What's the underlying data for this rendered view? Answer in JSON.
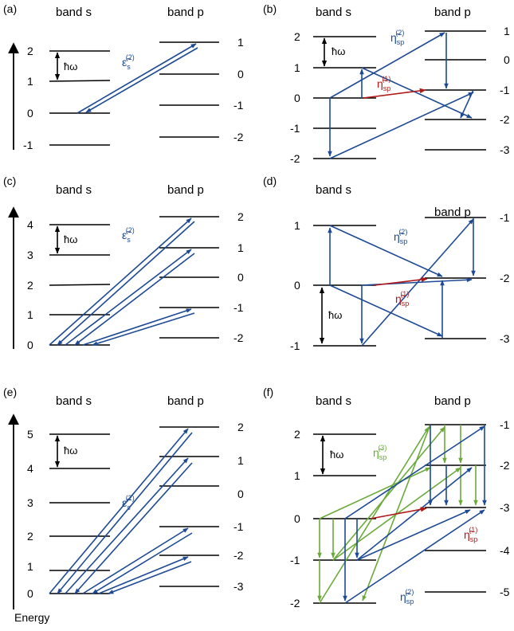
{
  "colors": {
    "blue": "#1c4a94",
    "red": "#b01818",
    "green": "#6aaa3a",
    "black": "#000000"
  },
  "axis_label": "Energy",
  "hbar_omega": "ħω",
  "panels": [
    {
      "id": "a",
      "label": "(a)",
      "band_s": "band s",
      "band_p": "band p",
      "s_levels": [
        "2",
        "1",
        "0",
        "-1"
      ],
      "p_levels": [
        "1",
        "0",
        "-1",
        "-2"
      ],
      "symbol": "ε̃",
      "sub": "s",
      "sup": "(2)"
    },
    {
      "id": "b",
      "label": "(b)",
      "band_s": "band s",
      "band_p": "band p",
      "s_levels": [
        "2",
        "1",
        "0",
        "-1",
        "-2"
      ],
      "p_levels": [
        "1",
        "0",
        "-1",
        "-2",
        "-3"
      ],
      "symbols": [
        {
          "sym": "η̃",
          "sub": "sp",
          "sup": "(2)",
          "color": "blue"
        },
        {
          "sym": "η̃",
          "sub": "sp",
          "sup": "(1)",
          "color": "red"
        }
      ]
    },
    {
      "id": "c",
      "label": "(c)",
      "band_s": "band s",
      "band_p": "band p",
      "s_levels": [
        "4",
        "3",
        "2",
        "1",
        "0"
      ],
      "p_levels": [
        "2",
        "1",
        "0",
        "-1",
        "-2"
      ],
      "symbol": "ε̃",
      "sub": "s",
      "sup": "(2)"
    },
    {
      "id": "d",
      "label": "(d)",
      "band_s": "band s",
      "band_p": "band p",
      "s_levels": [
        "1",
        "0",
        "-1"
      ],
      "p_levels": [
        "-1",
        "-2",
        "-3"
      ],
      "symbols": [
        {
          "sym": "η̃",
          "sub": "sp",
          "sup": "(2)",
          "color": "blue"
        },
        {
          "sym": "η̃",
          "sub": "sp",
          "sup": "(1)",
          "color": "red"
        }
      ]
    },
    {
      "id": "e",
      "label": "(e)",
      "band_s": "band s",
      "band_p": "band p",
      "s_levels": [
        "5",
        "4",
        "3",
        "2",
        "1",
        "0"
      ],
      "p_levels": [
        "2",
        "1",
        "0",
        "-1",
        "-2",
        "-3"
      ],
      "symbol": "ε̃",
      "sub": "s",
      "sup": "(2)"
    },
    {
      "id": "f",
      "label": "(f)",
      "band_s": "band s",
      "band_p": "band p",
      "s_levels": [
        "2",
        "1",
        "0",
        "-1",
        "-2"
      ],
      "p_levels": [
        "-1",
        "-2",
        "-3",
        "-4",
        "-5"
      ],
      "symbols": [
        {
          "sym": "η̃",
          "sub": "sp",
          "sup": "(3)",
          "color": "green"
        },
        {
          "sym": "η̃",
          "sub": "sp",
          "sup": "(1)",
          "color": "red"
        },
        {
          "sym": "η̃",
          "sub": "sp",
          "sup": "(2)",
          "color": "blue"
        }
      ]
    }
  ]
}
